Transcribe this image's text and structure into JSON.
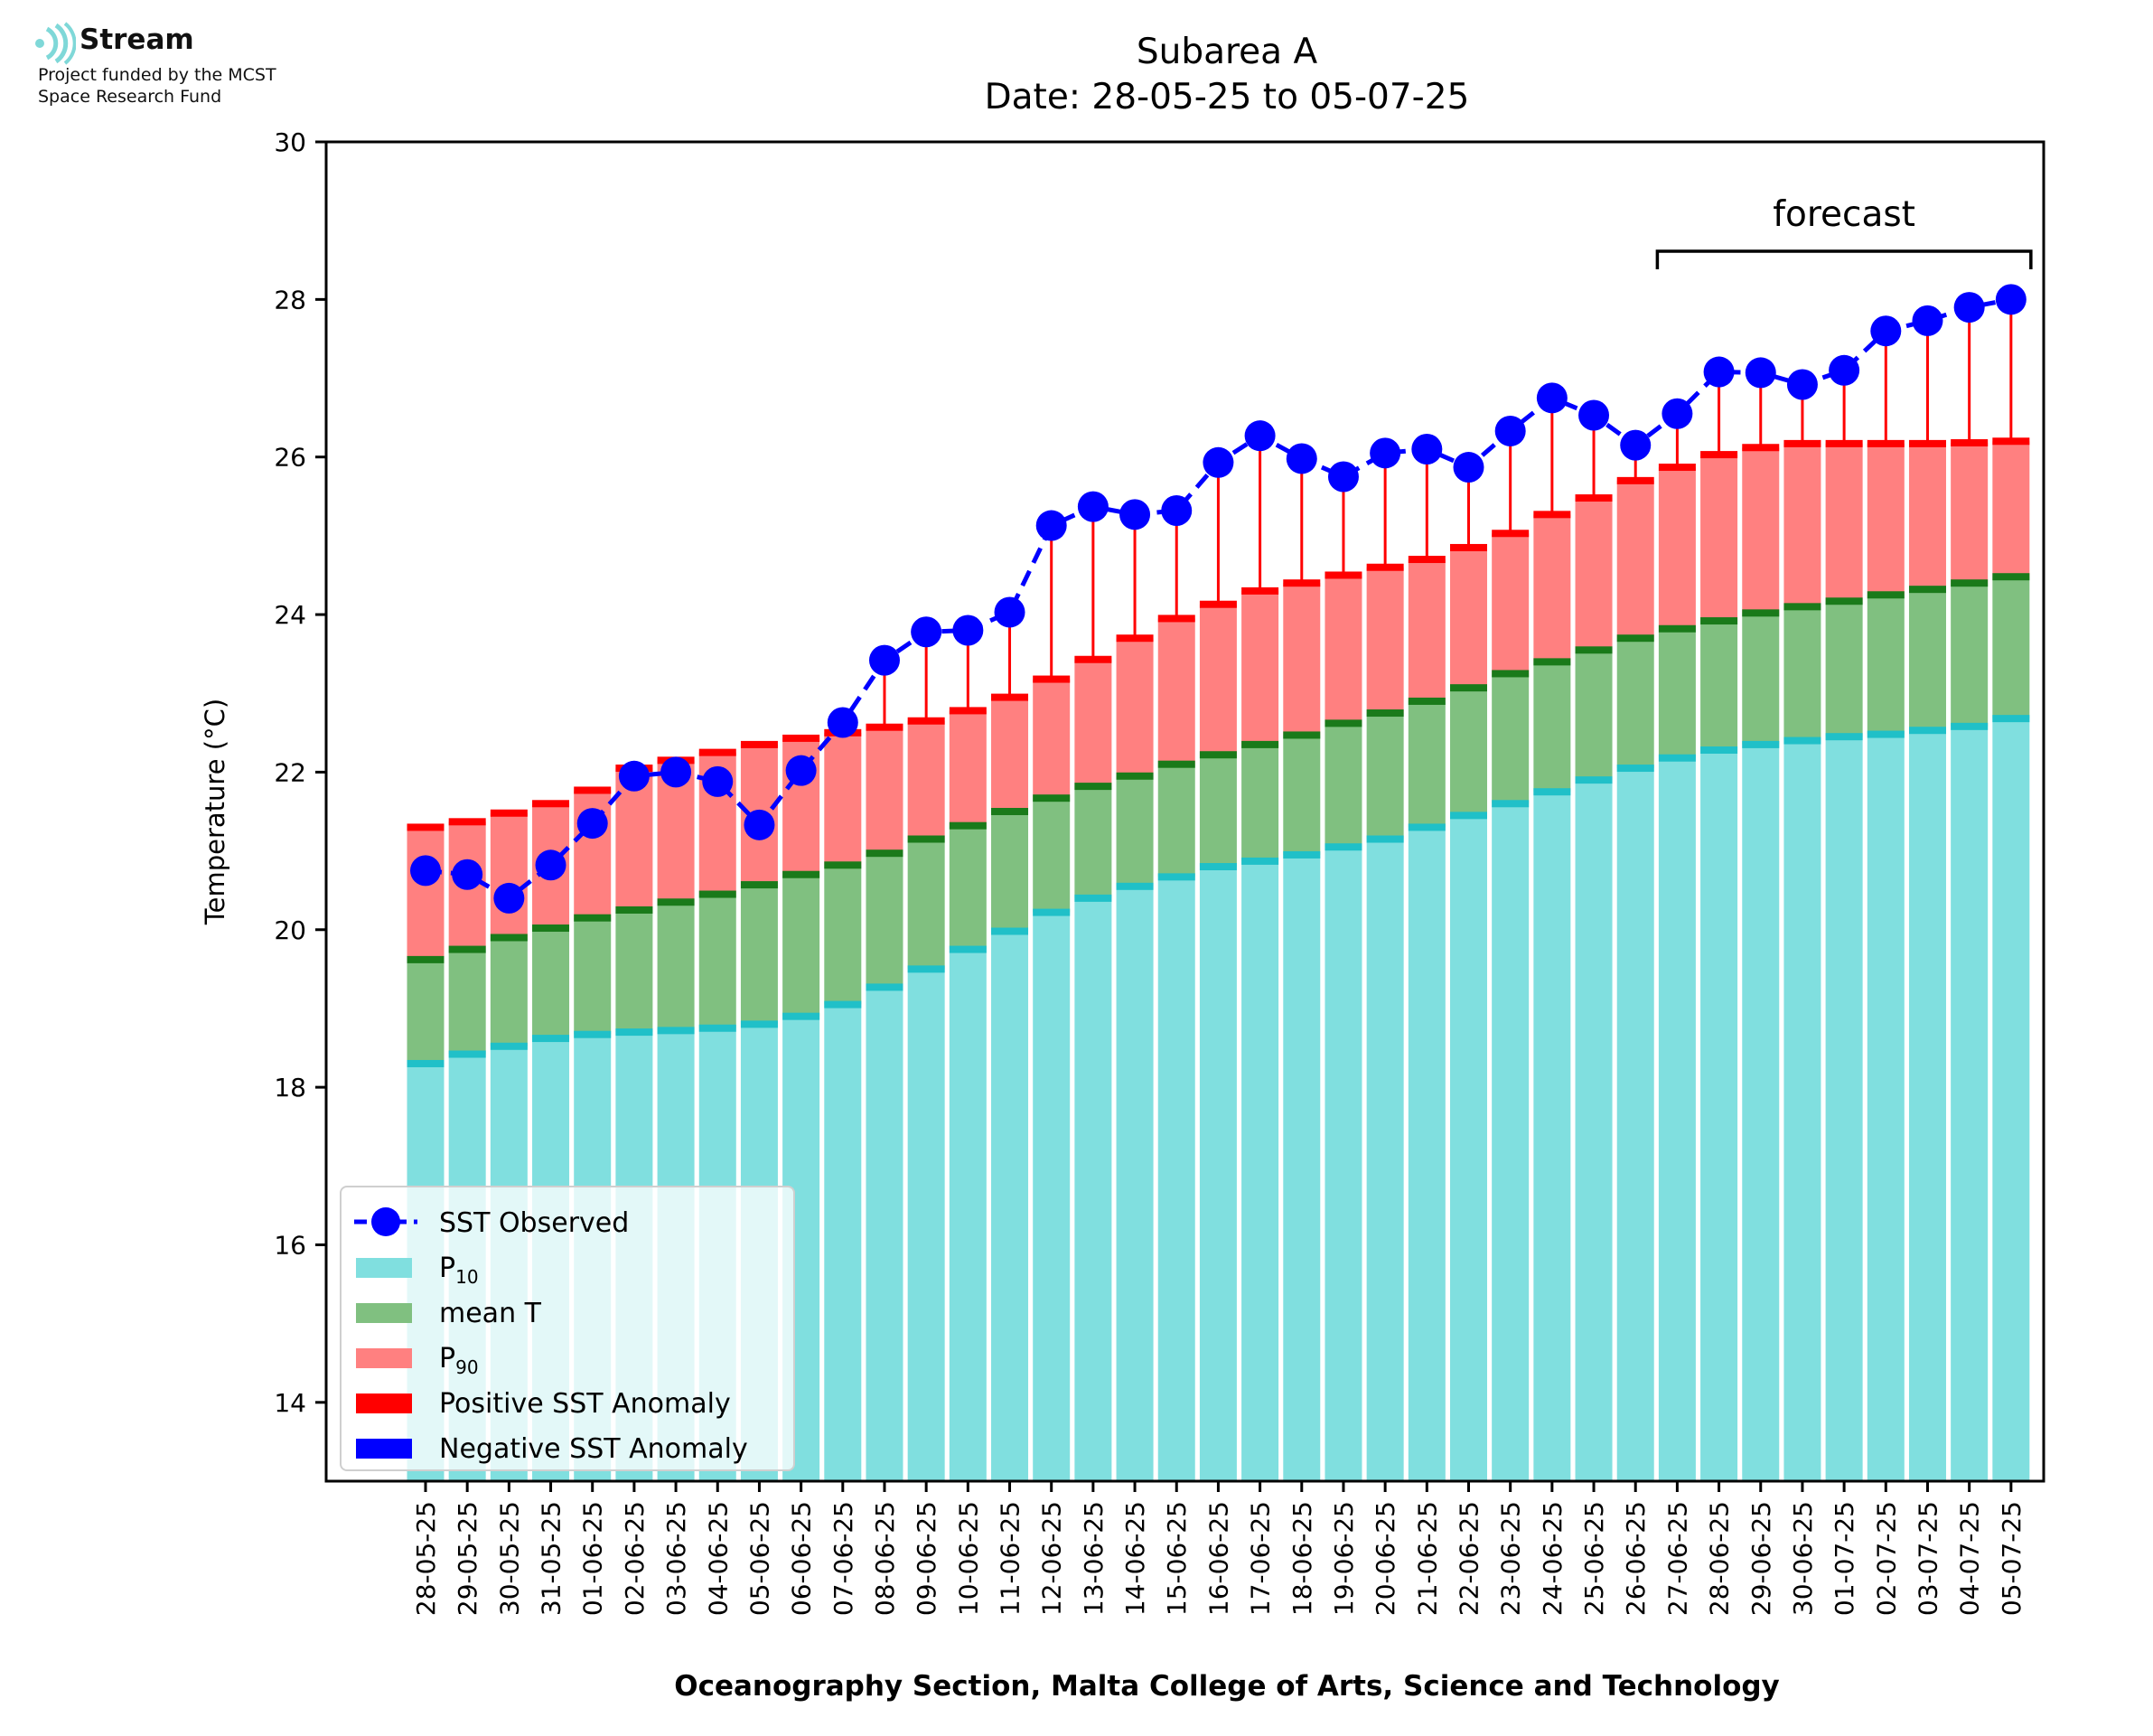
{
  "logo": {
    "name": "Stream",
    "subtitle_line1": "Project funded by the MCST",
    "subtitle_line2": "Space Research Fund"
  },
  "chart_data": {
    "type": "bar",
    "title": "Subarea A",
    "subtitle": "Date: 28-05-25 to 05-07-25",
    "xlabel": "Oceanography Section, Malta College of Arts, Science and Technology",
    "ylabel": "Temperature (°C)",
    "ylim": [
      13,
      30
    ],
    "yticks": [
      14,
      16,
      18,
      20,
      22,
      24,
      26,
      28,
      30
    ],
    "categories": [
      "28-05-25",
      "29-05-25",
      "30-05-25",
      "31-05-25",
      "01-06-25",
      "02-06-25",
      "03-06-25",
      "04-06-25",
      "05-06-25",
      "06-06-25",
      "07-06-25",
      "08-06-25",
      "09-06-25",
      "10-06-25",
      "11-06-25",
      "12-06-25",
      "13-06-25",
      "14-06-25",
      "15-06-25",
      "16-06-25",
      "17-06-25",
      "18-06-25",
      "19-06-25",
      "20-06-25",
      "21-06-25",
      "22-06-25",
      "23-06-25",
      "24-06-25",
      "25-06-25",
      "26-06-25",
      "27-06-25",
      "28-06-25",
      "29-06-25",
      "30-06-25",
      "01-07-25",
      "02-07-25",
      "03-07-25",
      "04-07-25",
      "05-07-25"
    ],
    "series": [
      {
        "name": "SST Observed",
        "color": "#0000ff",
        "values": [
          20.75,
          20.7,
          20.4,
          20.82,
          21.35,
          21.95,
          22.0,
          21.88,
          21.33,
          22.02,
          22.63,
          23.42,
          23.78,
          23.8,
          24.03,
          25.13,
          25.37,
          25.27,
          25.32,
          25.93,
          26.27,
          25.98,
          25.75,
          26.05,
          26.1,
          25.87,
          26.33,
          26.75,
          26.53,
          26.15,
          26.55,
          27.08,
          27.07,
          26.92,
          27.1,
          27.6,
          27.73,
          27.9,
          28.0
        ]
      },
      {
        "name": "P10",
        "color": "#80dfdf",
        "values": [
          18.3,
          18.42,
          18.52,
          18.62,
          18.67,
          18.7,
          18.72,
          18.75,
          18.8,
          18.9,
          19.05,
          19.27,
          19.5,
          19.75,
          19.98,
          20.22,
          20.4,
          20.55,
          20.67,
          20.8,
          20.87,
          20.95,
          21.05,
          21.15,
          21.3,
          21.45,
          21.6,
          21.75,
          21.9,
          22.05,
          22.18,
          22.28,
          22.35,
          22.4,
          22.45,
          22.48,
          22.53,
          22.58,
          22.68
        ]
      },
      {
        "name": "mean T",
        "color": "#80c080",
        "values": [
          19.62,
          19.75,
          19.9,
          20.02,
          20.15,
          20.25,
          20.35,
          20.45,
          20.57,
          20.7,
          20.82,
          20.97,
          21.15,
          21.32,
          21.5,
          21.67,
          21.82,
          21.95,
          22.1,
          22.22,
          22.35,
          22.47,
          22.62,
          22.75,
          22.9,
          23.07,
          23.25,
          23.4,
          23.55,
          23.7,
          23.82,
          23.92,
          24.02,
          24.1,
          24.17,
          24.25,
          24.32,
          24.4,
          24.48
        ]
      },
      {
        "name": "P90",
        "color": "#ff8080",
        "values": [
          21.3,
          21.37,
          21.48,
          21.6,
          21.77,
          22.05,
          22.15,
          22.25,
          22.35,
          22.43,
          22.5,
          22.57,
          22.65,
          22.78,
          22.95,
          23.18,
          23.43,
          23.7,
          23.95,
          24.13,
          24.3,
          24.4,
          24.5,
          24.6,
          24.7,
          24.85,
          25.03,
          25.27,
          25.48,
          25.7,
          25.87,
          26.03,
          26.12,
          26.17,
          26.17,
          26.17,
          26.17,
          26.18,
          26.2
        ]
      }
    ],
    "legend": {
      "position": "lower-left",
      "items": [
        {
          "label": "SST Observed",
          "kind": "line",
          "color": "#0000ff"
        },
        {
          "label": "P",
          "sub": "10",
          "kind": "patch",
          "color": "#80dfdf"
        },
        {
          "label": "mean T",
          "kind": "patch",
          "color": "#80c080"
        },
        {
          "label": "P",
          "sub": "90",
          "kind": "patch",
          "color": "#ff8080"
        },
        {
          "label": "Positive SST Anomaly",
          "kind": "patch",
          "color": "#ff0000"
        },
        {
          "label": "Negative SST Anomaly",
          "kind": "patch",
          "color": "#0000ff"
        }
      ]
    },
    "annotation": {
      "text": "forecast",
      "from": "27-06-25",
      "to": "05-07-25"
    },
    "colors": {
      "p10_cap": "#20c0c8",
      "mean_cap": "#1a7a1a",
      "p90_cap": "#ff0000",
      "positive_anomaly": "#ff0000",
      "negative_anomaly": "#0000ff"
    },
    "grid": false
  }
}
